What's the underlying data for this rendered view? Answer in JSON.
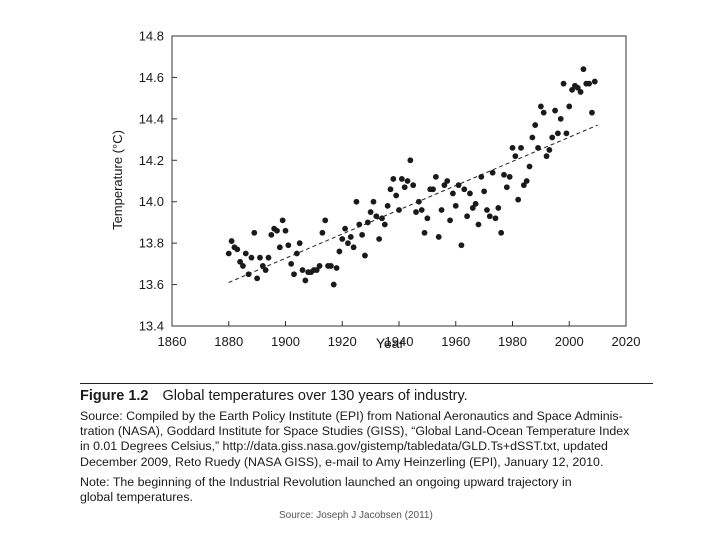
{
  "chart_data": {
    "type": "scatter",
    "xlabel": "Year",
    "ylabel": "Temperature (°C)",
    "xlim": [
      1860,
      2020
    ],
    "ylim": [
      13.4,
      14.8
    ],
    "x_ticks": [
      "1860",
      "1880",
      "1900",
      "1920",
      "1940",
      "1960",
      "1980",
      "2000",
      "2020"
    ],
    "y_ticks": [
      "13.4",
      "13.6",
      "13.8",
      "14.0",
      "14.2",
      "14.4",
      "14.6",
      "14.8"
    ],
    "grid": false,
    "points": [
      [
        1880,
        13.75
      ],
      [
        1881,
        13.81
      ],
      [
        1882,
        13.78
      ],
      [
        1883,
        13.77
      ],
      [
        1884,
        13.71
      ],
      [
        1885,
        13.69
      ],
      [
        1886,
        13.75
      ],
      [
        1887,
        13.65
      ],
      [
        1888,
        13.73
      ],
      [
        1889,
        13.85
      ],
      [
        1890,
        13.63
      ],
      [
        1891,
        13.73
      ],
      [
        1892,
        13.69
      ],
      [
        1893,
        13.67
      ],
      [
        1894,
        13.73
      ],
      [
        1895,
        13.84
      ],
      [
        1896,
        13.87
      ],
      [
        1897,
        13.86
      ],
      [
        1898,
        13.78
      ],
      [
        1899,
        13.91
      ],
      [
        1900,
        13.86
      ],
      [
        1901,
        13.79
      ],
      [
        1902,
        13.7
      ],
      [
        1903,
        13.65
      ],
      [
        1904,
        13.75
      ],
      [
        1905,
        13.8
      ],
      [
        1906,
        13.67
      ],
      [
        1907,
        13.62
      ],
      [
        1908,
        13.66
      ],
      [
        1909,
        13.66
      ],
      [
        1910,
        13.67
      ],
      [
        1911,
        13.67
      ],
      [
        1912,
        13.69
      ],
      [
        1913,
        13.85
      ],
      [
        1914,
        13.91
      ],
      [
        1915,
        13.69
      ],
      [
        1916,
        13.69
      ],
      [
        1917,
        13.6
      ],
      [
        1918,
        13.68
      ],
      [
        1919,
        13.76
      ],
      [
        1920,
        13.82
      ],
      [
        1921,
        13.87
      ],
      [
        1922,
        13.8
      ],
      [
        1923,
        13.83
      ],
      [
        1924,
        13.78
      ],
      [
        1925,
        14.0
      ],
      [
        1926,
        13.89
      ],
      [
        1927,
        13.84
      ],
      [
        1928,
        13.74
      ],
      [
        1929,
        13.9
      ],
      [
        1930,
        13.95
      ],
      [
        1931,
        14.0
      ],
      [
        1932,
        13.93
      ],
      [
        1933,
        13.82
      ],
      [
        1934,
        13.92
      ],
      [
        1935,
        13.89
      ],
      [
        1936,
        13.98
      ],
      [
        1937,
        14.06
      ],
      [
        1938,
        14.11
      ],
      [
        1939,
        14.03
      ],
      [
        1940,
        13.96
      ],
      [
        1941,
        14.11
      ],
      [
        1942,
        14.07
      ],
      [
        1943,
        14.1
      ],
      [
        1944,
        14.2
      ],
      [
        1945,
        14.08
      ],
      [
        1946,
        13.95
      ],
      [
        1947,
        14.0
      ],
      [
        1948,
        13.96
      ],
      [
        1949,
        13.85
      ],
      [
        1950,
        13.92
      ],
      [
        1951,
        14.06
      ],
      [
        1952,
        14.06
      ],
      [
        1953,
        14.12
      ],
      [
        1954,
        13.83
      ],
      [
        1955,
        13.96
      ],
      [
        1956,
        14.08
      ],
      [
        1957,
        14.1
      ],
      [
        1958,
        13.91
      ],
      [
        1959,
        14.04
      ],
      [
        1960,
        13.98
      ],
      [
        1961,
        14.08
      ],
      [
        1962,
        13.79
      ],
      [
        1963,
        14.06
      ],
      [
        1964,
        13.93
      ],
      [
        1965,
        14.04
      ],
      [
        1966,
        13.97
      ],
      [
        1967,
        13.99
      ],
      [
        1968,
        13.89
      ],
      [
        1969,
        14.12
      ],
      [
        1970,
        14.05
      ],
      [
        1971,
        13.96
      ],
      [
        1972,
        13.93
      ],
      [
        1973,
        14.14
      ],
      [
        1974,
        13.92
      ],
      [
        1975,
        13.97
      ],
      [
        1976,
        13.85
      ],
      [
        1977,
        14.13
      ],
      [
        1978,
        14.07
      ],
      [
        1979,
        14.12
      ],
      [
        1980,
        14.26
      ],
      [
        1981,
        14.22
      ],
      [
        1982,
        14.01
      ],
      [
        1983,
        14.26
      ],
      [
        1984,
        14.08
      ],
      [
        1985,
        14.1
      ],
      [
        1986,
        14.17
      ],
      [
        1987,
        14.31
      ],
      [
        1988,
        14.37
      ],
      [
        1989,
        14.26
      ],
      [
        1990,
        14.46
      ],
      [
        1991,
        14.43
      ],
      [
        1992,
        14.22
      ],
      [
        1993,
        14.25
      ],
      [
        1994,
        14.31
      ],
      [
        1995,
        14.44
      ],
      [
        1996,
        14.33
      ],
      [
        1997,
        14.4
      ],
      [
        1998,
        14.57
      ],
      [
        1999,
        14.33
      ],
      [
        2000,
        14.46
      ],
      [
        2001,
        14.54
      ],
      [
        2002,
        14.56
      ],
      [
        2003,
        14.55
      ],
      [
        2004,
        14.53
      ],
      [
        2005,
        14.64
      ],
      [
        2006,
        14.57
      ],
      [
        2007,
        14.57
      ],
      [
        2008,
        14.43
      ],
      [
        2009,
        14.58
      ]
    ],
    "trendline": [
      [
        1880,
        13.61
      ],
      [
        2010,
        14.37
      ]
    ]
  },
  "caption": {
    "figure_label": "Figure 1.2",
    "figure_title": "Global temperatures over 130 years of industry.",
    "source_lines": [
      "Source: Compiled by the Earth Policy Institute (EPI) from National Aeronautics and Space Adminis-",
      "tration (NASA), Goddard Institute for Space Studies (GISS), “Global Land-Ocean Temperature Index",
      "in 0.01 Degrees Celsius,” http://data.giss.nasa.gov/gistemp/tabledata/GLD.Ts+dSST.txt, updated",
      "December 2009, Reto Ruedy (NASA GISS), e-mail to Amy Heinzerling (EPI), January 12, 2010."
    ],
    "note_lines": [
      "Note: The beginning of the Industrial Revolution launched an ongoing upward trajectory in",
      "global temperatures."
    ]
  },
  "credit": "Source: Joseph J Jacobsen (2011)"
}
